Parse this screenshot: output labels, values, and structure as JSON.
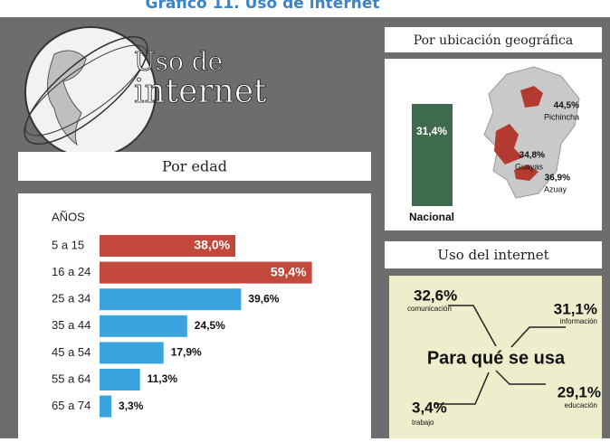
{
  "page_title": "Gráfico 11.  Uso de internet",
  "header": {
    "line1": "Uso de",
    "line2": "internet"
  },
  "chart_data": {
    "type": "hbar",
    "title": "Por edad",
    "y_label": "AÑOS",
    "categories": [
      "5 a 15",
      "16 a 24",
      "25 a 34",
      "35 a 44",
      "45 a 54",
      "55 a 64",
      "65 a 74"
    ],
    "values": [
      38.0,
      59.4,
      39.6,
      24.5,
      17.9,
      11.3,
      3.3
    ],
    "value_labels": [
      "38,0%",
      "59,4%",
      "39,6%",
      "24,5%",
      "17,9%",
      "11,3%",
      "3,3%"
    ],
    "colors": [
      "#c1483b",
      "#c1483b",
      "#3aa2dc",
      "#3aa2dc",
      "#3aa2dc",
      "#3aa2dc",
      "#3aa2dc"
    ],
    "xlim": [
      0,
      60
    ]
  },
  "geo": {
    "title": "Por ubicación geográfica",
    "national": {
      "value": "31,4%",
      "label": "Nacional"
    },
    "regions": [
      {
        "value": "44,5%",
        "label": "Pichincha"
      },
      {
        "value": "34,8%",
        "label": "Guayas"
      },
      {
        "value": "36,9%",
        "label": "Azuay"
      }
    ]
  },
  "usage": {
    "title": "Uso del internet",
    "center": "Para qué se usa",
    "items": [
      {
        "value": "32,6%",
        "label": "comunicación"
      },
      {
        "value": "31,1%",
        "label": "información"
      },
      {
        "value": "29,1%",
        "label": "educación"
      },
      {
        "value": "3,4%",
        "label": "trabajo"
      }
    ]
  }
}
